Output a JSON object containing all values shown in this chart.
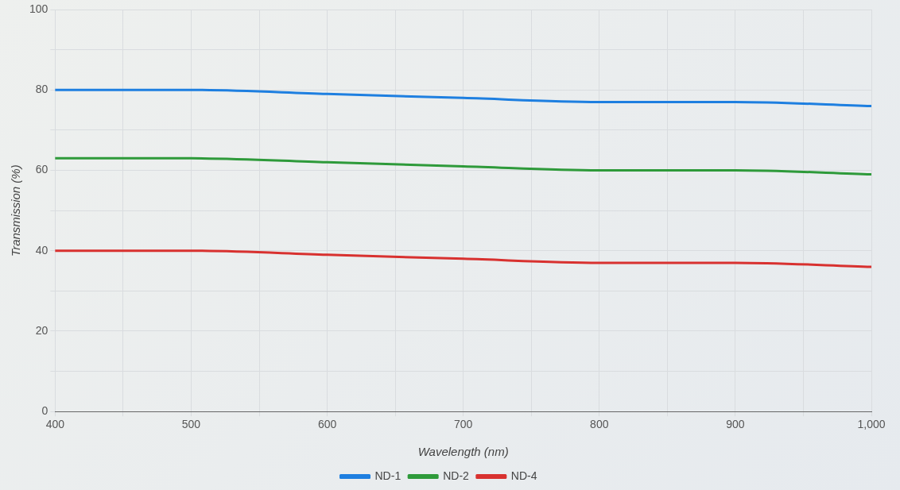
{
  "chart_data": {
    "type": "line",
    "xlabel": "Wavelength (nm)",
    "ylabel": "Transmission (%)",
    "x": [
      400,
      500,
      600,
      700,
      800,
      900,
      1000
    ],
    "series": [
      {
        "name": "ND-1",
        "color": "#1e7fe0",
        "values": [
          80,
          80,
          79,
          78,
          77,
          77,
          76
        ]
      },
      {
        "name": "ND-2",
        "color": "#2e9a3a",
        "values": [
          63,
          63,
          62,
          61,
          60,
          60,
          59
        ]
      },
      {
        "name": "ND-4",
        "color": "#d8312f",
        "values": [
          40,
          40,
          39,
          38,
          37,
          37,
          36
        ]
      }
    ],
    "xlim": [
      400,
      1000
    ],
    "xticks": [
      400,
      {
        "value": 450,
        "label": null
      },
      500,
      {
        "value": 550,
        "label": null
      },
      600,
      {
        "value": 650,
        "label": null
      },
      700,
      {
        "value": 750,
        "label": null
      },
      800,
      {
        "value": 850,
        "label": null
      },
      900,
      {
        "value": 950,
        "label": null
      },
      {
        "value": 1000,
        "label": "1,000"
      }
    ],
    "ylim": [
      0,
      100
    ],
    "yticks": [
      0,
      {
        "value": 10,
        "label": null
      },
      20,
      {
        "value": 30,
        "label": null
      },
      40,
      {
        "value": 50,
        "label": null
      },
      60,
      {
        "value": 70,
        "label": null
      },
      80,
      {
        "value": 90,
        "label": null
      },
      100
    ],
    "grid": true,
    "legend": "bottom",
    "marker": "none",
    "line_style": "solid"
  }
}
